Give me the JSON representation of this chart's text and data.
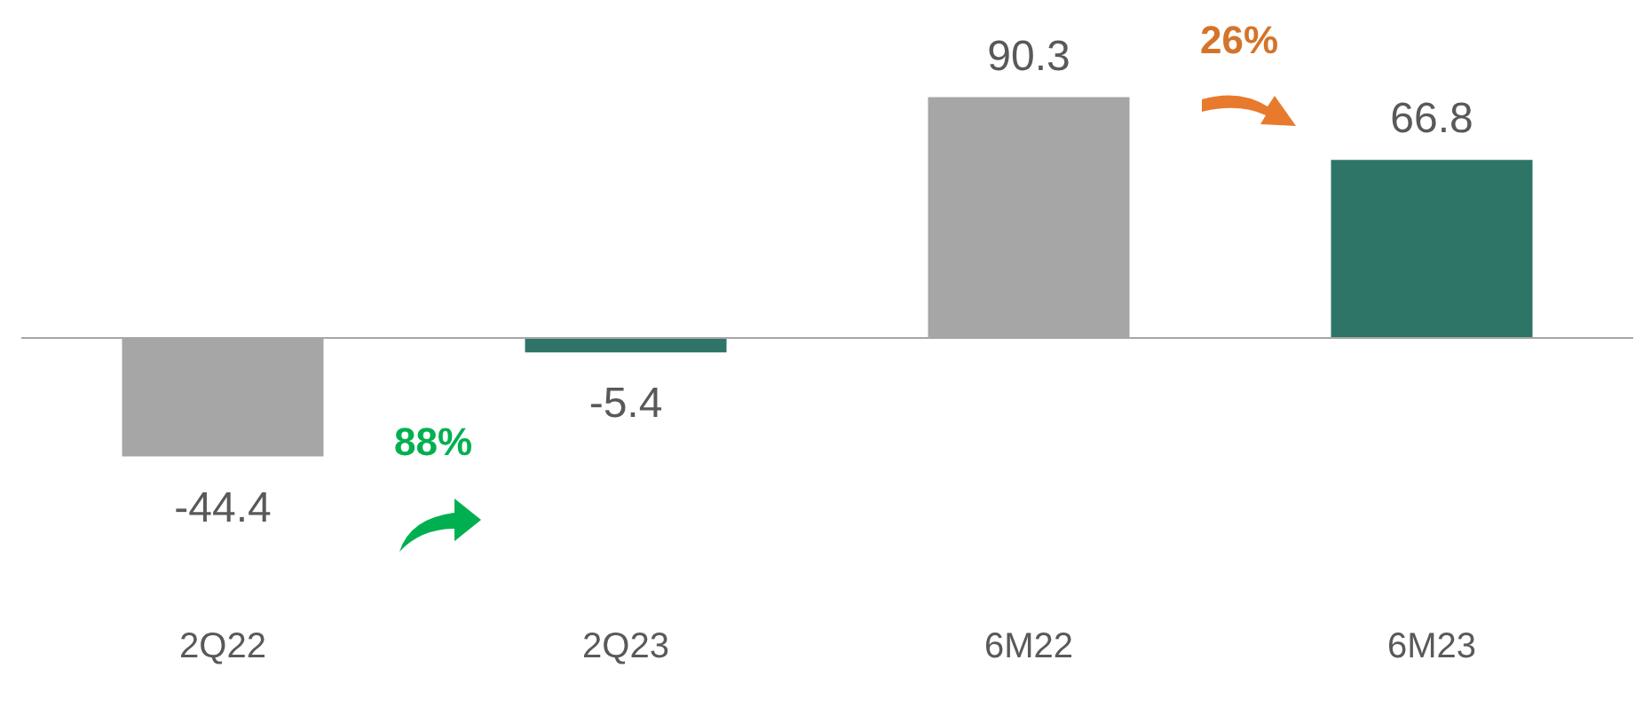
{
  "chart_data": {
    "type": "bar",
    "categories": [
      "2Q22",
      "2Q23",
      "6M22",
      "6M23"
    ],
    "values": [
      -44.4,
      -5.4,
      90.3,
      66.8
    ],
    "colors": [
      "#a6a6a6",
      "#2e7567",
      "#a6a6a6",
      "#2e7567"
    ],
    "data_labels": true,
    "grid": false,
    "legend": false,
    "annotations": [
      "88%",
      "26%"
    ]
  }
}
